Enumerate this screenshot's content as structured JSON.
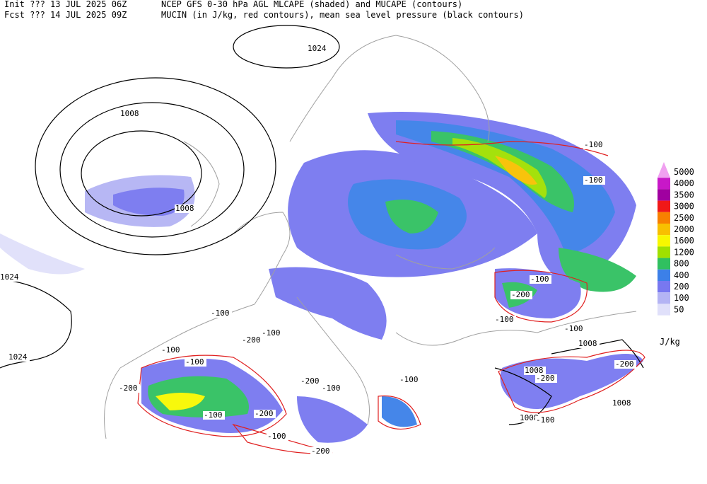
{
  "header": {
    "init": "Init  ??? 13 JUL 2025 06Z",
    "fcst": "Fcst ??? 14 JUL 2025 09Z",
    "title1": "NCEP GFS 0-30 hPa AGL MLCAPE (shaded) and MUCAPE (contours)",
    "title2": "MUCIN (in J/kg, red contours), mean sea level pressure (black contours)"
  },
  "colorbar": {
    "levels": [
      5000,
      4000,
      3500,
      3000,
      2500,
      2000,
      1600,
      1200,
      800,
      400,
      200,
      100,
      50
    ],
    "colors": [
      "#f0a0f0",
      "#c818c8",
      "#a000a0",
      "#f01818",
      "#f88000",
      "#f8c000",
      "#f8f800",
      "#a0e000",
      "#30c060",
      "#3c80e8",
      "#7878f0",
      "#b4b4f4",
      "#e0e0fa"
    ],
    "unit": "J/kg"
  },
  "pressure_labels": [
    "1024",
    "1008",
    "1008",
    "1024",
    "1024",
    "1008",
    "1008",
    "1008",
    "1008"
  ],
  "cin_labels": [
    "-100",
    "-100",
    "-200",
    "-100",
    "-100",
    "-100",
    "-100",
    "-200",
    "-100",
    "-200",
    "-200",
    "-100",
    "-100",
    "-200",
    "-100",
    "-200",
    "-100",
    "-200",
    "-100",
    "-100",
    "-200",
    "-100"
  ]
}
